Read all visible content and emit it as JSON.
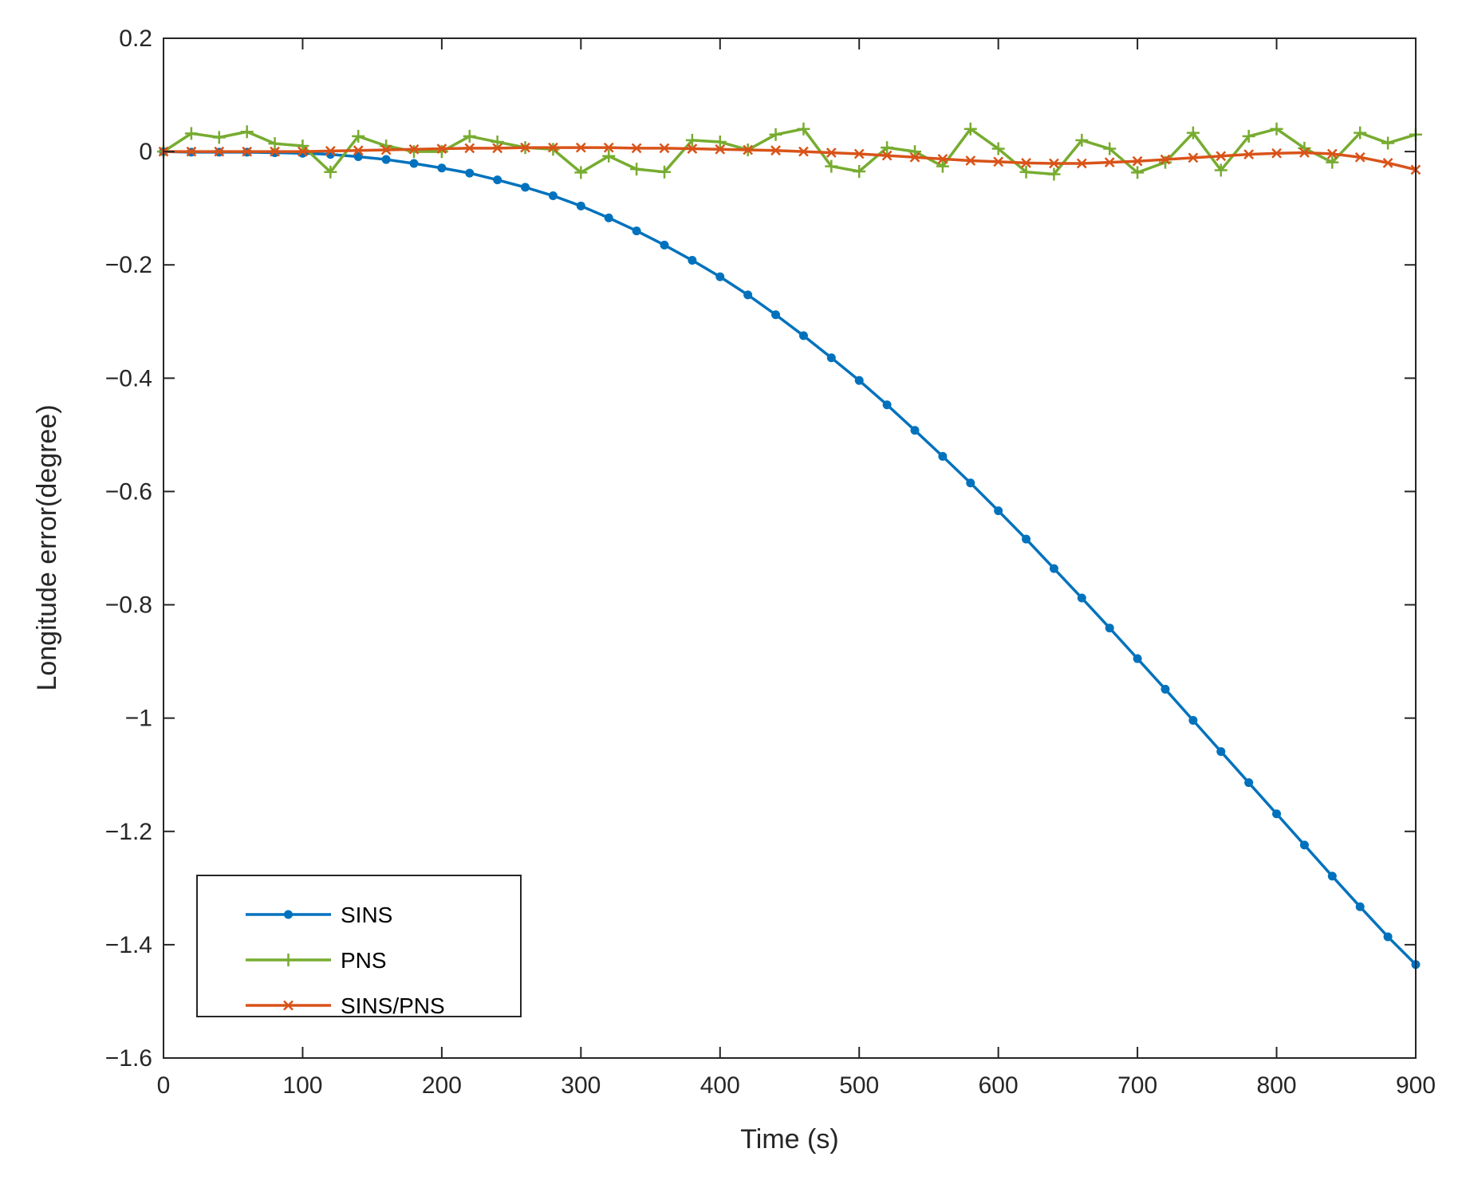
{
  "chart_data": {
    "type": "line",
    "title": "",
    "xlabel": "Time (s)",
    "ylabel": "Longitude error(degree)",
    "xlim": [
      0,
      900
    ],
    "ylim": [
      -1.6,
      0.2
    ],
    "xticks": [
      0,
      100,
      200,
      300,
      400,
      500,
      600,
      700,
      800,
      900
    ],
    "xtick_labels": [
      "0",
      "100",
      "200",
      "300",
      "400",
      "500",
      "600",
      "700",
      "800",
      "900"
    ],
    "yticks": [
      0.2,
      0,
      -0.2,
      -0.4,
      -0.6,
      -0.8,
      -1,
      -1.2,
      -1.4,
      -1.6
    ],
    "ytick_labels": [
      "0.2",
      "0",
      "−0.2",
      "−0.4",
      "−0.6",
      "−0.8",
      "−1",
      "−1.2",
      "−1.4",
      "−1.6"
    ],
    "grid": false,
    "legend_position": "bottom-left",
    "x": [
      0,
      20,
      40,
      60,
      80,
      100,
      120,
      140,
      160,
      180,
      200,
      220,
      240,
      260,
      280,
      300,
      320,
      340,
      360,
      380,
      400,
      420,
      440,
      460,
      480,
      500,
      520,
      540,
      560,
      580,
      600,
      620,
      640,
      660,
      680,
      700,
      720,
      740,
      760,
      780,
      800,
      820,
      840,
      860,
      880,
      900
    ],
    "series": [
      {
        "name": "SINS",
        "color": "#0072BD",
        "marker": "dot",
        "values": [
          0.0,
          -0.001,
          -0.001,
          -0.001,
          -0.002,
          -0.003,
          -0.005,
          -0.009,
          -0.014,
          -0.021,
          -0.029,
          -0.038,
          -0.05,
          -0.063,
          -0.078,
          -0.096,
          -0.117,
          -0.14,
          -0.165,
          -0.192,
          -0.221,
          -0.253,
          -0.288,
          -0.325,
          -0.364,
          -0.404,
          -0.447,
          -0.492,
          -0.538,
          -0.585,
          -0.634,
          -0.684,
          -0.736,
          -0.788,
          -0.841,
          -0.895,
          -0.949,
          -1.004,
          -1.059,
          -1.114,
          -1.169,
          -1.224,
          -1.279,
          -1.333,
          -1.386,
          -1.435
        ]
      },
      {
        "name": "PNS",
        "color": "#77AC30",
        "marker": "plus",
        "values": [
          0.0,
          0.032,
          0.025,
          0.035,
          0.014,
          0.01,
          -0.036,
          0.027,
          0.01,
          0.0,
          0.0,
          0.027,
          0.017,
          0.007,
          0.004,
          -0.037,
          -0.008,
          -0.031,
          -0.036,
          0.02,
          0.017,
          0.003,
          0.03,
          0.04,
          -0.026,
          -0.035,
          0.007,
          0.0,
          -0.026,
          0.04,
          0.005,
          -0.036,
          -0.04,
          0.02,
          0.005,
          -0.037,
          -0.019,
          0.033,
          -0.033,
          0.027,
          0.04,
          0.006,
          -0.019,
          0.033,
          0.015,
          0.03
        ]
      },
      {
        "name": "SINS/PNS",
        "color": "#D95319",
        "marker": "x",
        "values": [
          0.0,
          0.0,
          0.0,
          0.0,
          0.0,
          0.0,
          0.001,
          0.002,
          0.003,
          0.004,
          0.005,
          0.006,
          0.006,
          0.007,
          0.007,
          0.007,
          0.007,
          0.006,
          0.006,
          0.005,
          0.004,
          0.003,
          0.002,
          0.0,
          -0.002,
          -0.004,
          -0.007,
          -0.01,
          -0.013,
          -0.016,
          -0.018,
          -0.02,
          -0.021,
          -0.021,
          -0.019,
          -0.017,
          -0.014,
          -0.011,
          -0.008,
          -0.005,
          -0.003,
          -0.002,
          -0.004,
          -0.01,
          -0.02,
          -0.032
        ]
      }
    ]
  }
}
